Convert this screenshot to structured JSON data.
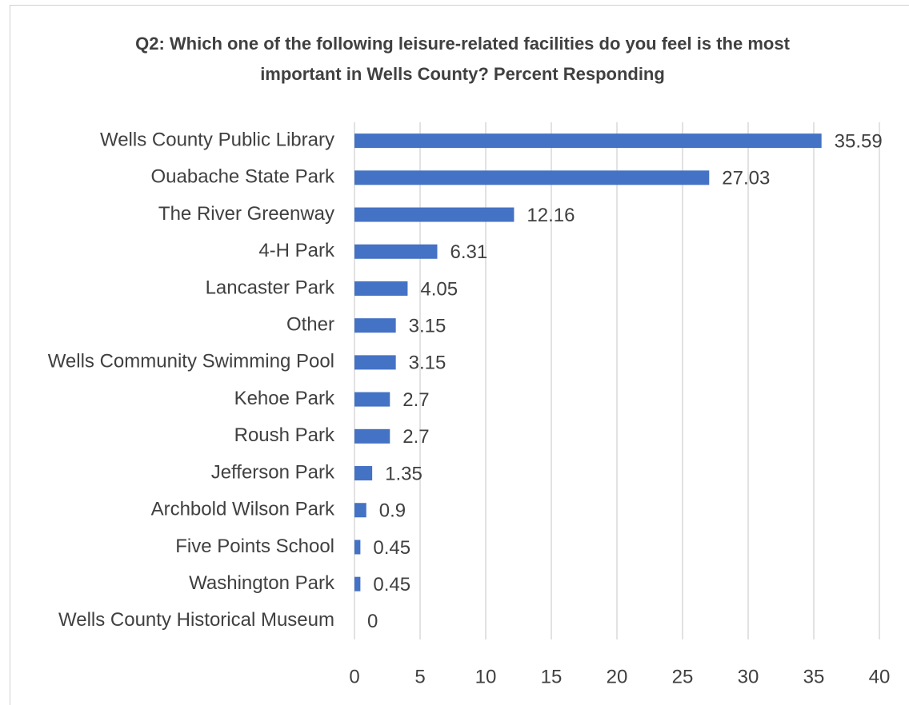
{
  "chart_data": {
    "type": "bar",
    "orientation": "horizontal",
    "title": "Q2: Which one of the following leisure-related facilities do you feel is the most important in Wells County? Percent Responding",
    "categories": [
      "Wells County Public Library",
      "Ouabache State Park",
      "The River Greenway",
      "4-H Park",
      "Lancaster Park",
      "Other",
      "Wells Community Swimming Pool",
      "Kehoe Park",
      "Roush Park",
      "Jefferson Park",
      "Archbold Wilson Park",
      "Five Points School",
      "Washington Park",
      "Wells County Historical Museum"
    ],
    "values": [
      35.59,
      27.03,
      12.16,
      6.31,
      4.05,
      3.15,
      3.15,
      2.7,
      2.7,
      1.35,
      0.9,
      0.45,
      0.45,
      0
    ],
    "color": "#4472c4",
    "xlim": [
      0,
      40
    ],
    "xticks": [
      0,
      5,
      10,
      15,
      20,
      25,
      30,
      35,
      40
    ],
    "grid": true
  }
}
